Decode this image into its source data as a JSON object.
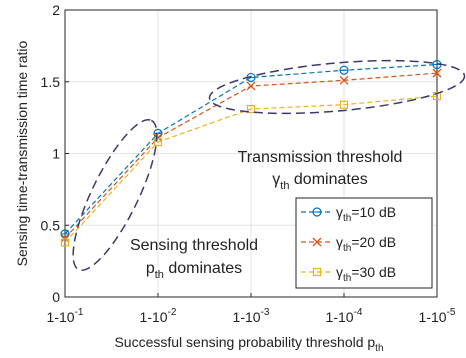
{
  "chart_data": {
    "type": "line",
    "xlabel": "Successful sensing probability threshold p",
    "xlabel_sub": "th",
    "ylabel": "Sensing time-transmission time ratio",
    "ylim": [
      0,
      2
    ],
    "y_ticks": [
      "0",
      "0.5",
      "1",
      "1.5",
      "2"
    ],
    "y_tick_values": [
      0,
      0.5,
      1,
      1.5,
      2
    ],
    "x_categories": [
      {
        "base": "1-10",
        "exp": "-1"
      },
      {
        "base": "1-10",
        "exp": "-2"
      },
      {
        "base": "1-10",
        "exp": "-3"
      },
      {
        "base": "1-10",
        "exp": "-4"
      },
      {
        "base": "1-10",
        "exp": "-5"
      }
    ],
    "grid": true,
    "legend_position": "lower-right",
    "series": [
      {
        "symbol": "γ",
        "sub": "th",
        "suffix": "=10 dB",
        "color": "#0072BD",
        "marker": "circle",
        "values": [
          0.44,
          1.14,
          1.53,
          1.58,
          1.62
        ]
      },
      {
        "symbol": "γ",
        "sub": "th",
        "suffix": "=20 dB",
        "color": "#D95319",
        "marker": "x",
        "values": [
          0.41,
          1.11,
          1.47,
          1.51,
          1.56
        ]
      },
      {
        "symbol": "γ",
        "sub": "th",
        "suffix": "=30 dB",
        "color": "#EDB120",
        "marker": "square",
        "values": [
          0.38,
          1.08,
          1.31,
          1.34,
          1.4
        ]
      }
    ],
    "annotations": [
      {
        "line1": "Transmission threshold",
        "line2_symbol": "γ",
        "line2_sub": "th",
        "line2_rest": " dominates"
      },
      {
        "line1": "Sensing threshold",
        "line2_symbol": "p",
        "line2_sub": "th",
        "line2_rest": " dominates"
      }
    ],
    "ellipse_color": "#3b3b6b"
  }
}
